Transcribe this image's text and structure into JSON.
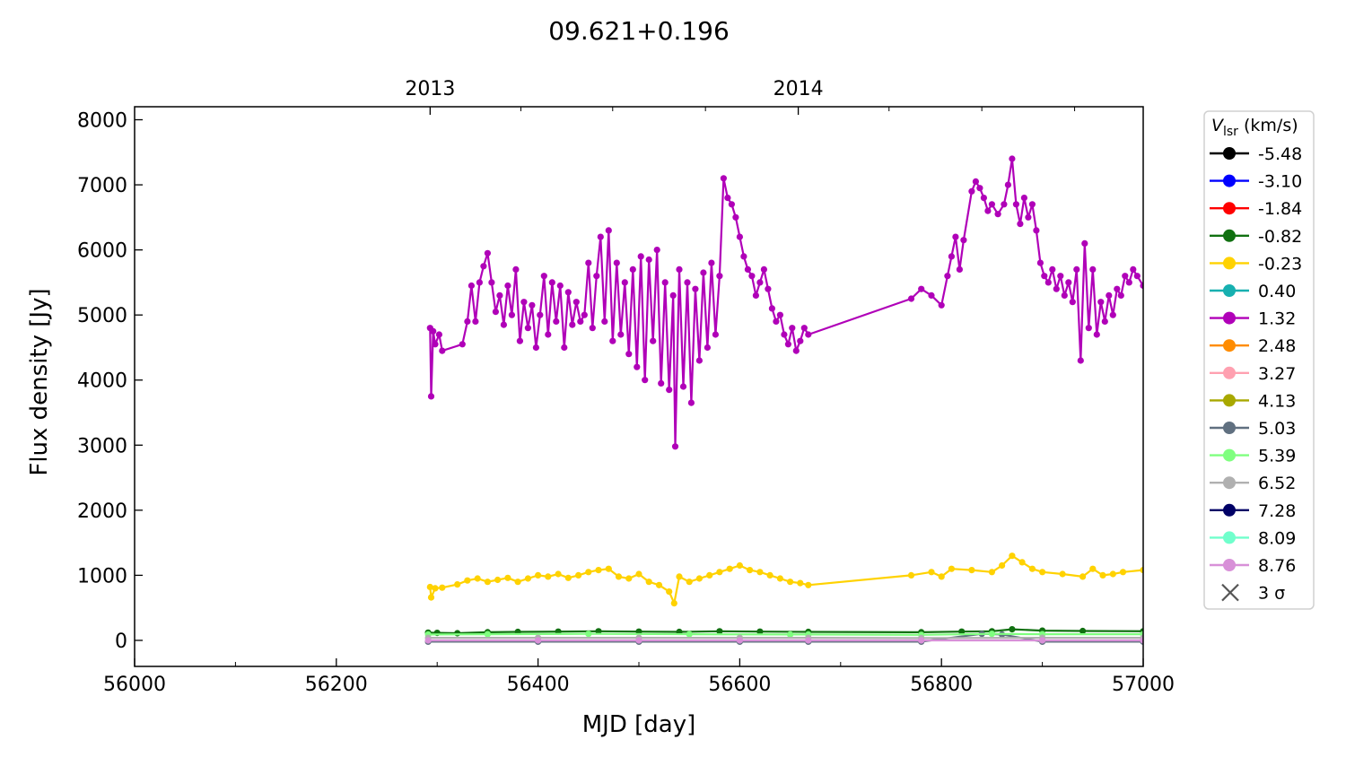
{
  "chart_data": {
    "type": "line",
    "title": "09.621+0.196",
    "xlabel": "MJD [day]",
    "ylabel": "Flux density [Jy]",
    "xlim": [
      56000,
      57000
    ],
    "ylim": [
      -400,
      8200
    ],
    "x_ticks": [
      56000,
      56200,
      56400,
      56600,
      56800,
      57000
    ],
    "y_ticks": [
      0,
      1000,
      2000,
      3000,
      4000,
      5000,
      6000,
      7000,
      8000
    ],
    "top_axis": {
      "labels": [
        {
          "text": "2013",
          "mjd": 56293
        },
        {
          "text": "2014",
          "mjd": 56658
        }
      ],
      "minor_mjd": [
        56383,
        56474,
        56566,
        56748,
        56840,
        56932
      ]
    },
    "legend": {
      "title_symbol": "V",
      "title_subscript": "lsr",
      "title_unit": " (km/s)",
      "position": "right, outside plot",
      "sigma_label": "3 σ"
    },
    "series": [
      {
        "name": "-5.48",
        "color": "#000000",
        "values": []
      },
      {
        "name": "-3.10",
        "color": "#0000ff",
        "values": []
      },
      {
        "name": "-1.84",
        "color": "#ff0000",
        "values": []
      },
      {
        "name": "-0.82",
        "color": "#107010",
        "values": [
          [
            56291,
            120
          ],
          [
            56300,
            115
          ],
          [
            56320,
            110
          ],
          [
            56350,
            125
          ],
          [
            56380,
            130
          ],
          [
            56420,
            135
          ],
          [
            56460,
            140
          ],
          [
            56500,
            135
          ],
          [
            56540,
            130
          ],
          [
            56580,
            140
          ],
          [
            56620,
            135
          ],
          [
            56668,
            130
          ],
          [
            56780,
            125
          ],
          [
            56820,
            135
          ],
          [
            56850,
            140
          ],
          [
            56870,
            170
          ],
          [
            56900,
            150
          ],
          [
            56940,
            145
          ],
          [
            57000,
            140
          ]
        ]
      },
      {
        "name": "-0.23",
        "color": "#ffd200",
        "values": [
          [
            56293,
            820
          ],
          [
            56294,
            660
          ],
          [
            56298,
            800
          ],
          [
            56305,
            810
          ],
          [
            56320,
            860
          ],
          [
            56330,
            920
          ],
          [
            56340,
            950
          ],
          [
            56350,
            900
          ],
          [
            56360,
            930
          ],
          [
            56370,
            960
          ],
          [
            56380,
            900
          ],
          [
            56390,
            950
          ],
          [
            56400,
            1000
          ],
          [
            56410,
            980
          ],
          [
            56420,
            1020
          ],
          [
            56430,
            960
          ],
          [
            56440,
            1000
          ],
          [
            56450,
            1050
          ],
          [
            56460,
            1080
          ],
          [
            56470,
            1100
          ],
          [
            56480,
            980
          ],
          [
            56490,
            950
          ],
          [
            56500,
            1020
          ],
          [
            56510,
            900
          ],
          [
            56520,
            850
          ],
          [
            56530,
            750
          ],
          [
            56535,
            570
          ],
          [
            56540,
            980
          ],
          [
            56550,
            900
          ],
          [
            56560,
            950
          ],
          [
            56570,
            1000
          ],
          [
            56580,
            1050
          ],
          [
            56590,
            1100
          ],
          [
            56600,
            1150
          ],
          [
            56610,
            1080
          ],
          [
            56620,
            1050
          ],
          [
            56630,
            1000
          ],
          [
            56640,
            950
          ],
          [
            56650,
            900
          ],
          [
            56660,
            880
          ],
          [
            56668,
            850
          ],
          [
            56770,
            1000
          ],
          [
            56790,
            1050
          ],
          [
            56800,
            980
          ],
          [
            56810,
            1100
          ],
          [
            56830,
            1080
          ],
          [
            56850,
            1050
          ],
          [
            56860,
            1150
          ],
          [
            56870,
            1300
          ],
          [
            56880,
            1200
          ],
          [
            56890,
            1100
          ],
          [
            56900,
            1050
          ],
          [
            56920,
            1020
          ],
          [
            56940,
            980
          ],
          [
            56950,
            1100
          ],
          [
            56960,
            1000
          ],
          [
            56970,
            1020
          ],
          [
            56980,
            1050
          ],
          [
            57000,
            1080
          ]
        ]
      },
      {
        "name": "0.40",
        "color": "#17b0b0",
        "values": []
      },
      {
        "name": "1.32",
        "color": "#b000b8",
        "values": [
          [
            56293,
            4800
          ],
          [
            56294,
            3750
          ],
          [
            56296,
            4750
          ],
          [
            56298,
            4550
          ],
          [
            56302,
            4700
          ],
          [
            56305,
            4450
          ],
          [
            56325,
            4550
          ],
          [
            56330,
            4900
          ],
          [
            56334,
            5450
          ],
          [
            56338,
            4900
          ],
          [
            56342,
            5500
          ],
          [
            56346,
            5750
          ],
          [
            56350,
            5950
          ],
          [
            56354,
            5500
          ],
          [
            56358,
            5050
          ],
          [
            56362,
            5300
          ],
          [
            56366,
            4850
          ],
          [
            56370,
            5450
          ],
          [
            56374,
            5000
          ],
          [
            56378,
            5700
          ],
          [
            56382,
            4600
          ],
          [
            56386,
            5200
          ],
          [
            56390,
            4800
          ],
          [
            56394,
            5150
          ],
          [
            56398,
            4500
          ],
          [
            56402,
            5000
          ],
          [
            56406,
            5600
          ],
          [
            56410,
            4700
          ],
          [
            56414,
            5500
          ],
          [
            56418,
            4900
          ],
          [
            56422,
            5450
          ],
          [
            56426,
            4500
          ],
          [
            56430,
            5350
          ],
          [
            56434,
            4850
          ],
          [
            56438,
            5200
          ],
          [
            56442,
            4900
          ],
          [
            56446,
            5000
          ],
          [
            56450,
            5800
          ],
          [
            56454,
            4800
          ],
          [
            56458,
            5600
          ],
          [
            56462,
            6200
          ],
          [
            56466,
            4900
          ],
          [
            56470,
            6300
          ],
          [
            56474,
            4600
          ],
          [
            56478,
            5800
          ],
          [
            56482,
            4700
          ],
          [
            56486,
            5500
          ],
          [
            56490,
            4400
          ],
          [
            56494,
            5700
          ],
          [
            56498,
            4200
          ],
          [
            56502,
            5900
          ],
          [
            56506,
            4000
          ],
          [
            56510,
            5850
          ],
          [
            56514,
            4600
          ],
          [
            56518,
            6000
          ],
          [
            56522,
            3950
          ],
          [
            56526,
            5500
          ],
          [
            56530,
            3850
          ],
          [
            56534,
            5300
          ],
          [
            56536,
            2980
          ],
          [
            56540,
            5700
          ],
          [
            56544,
            3900
          ],
          [
            56548,
            5500
          ],
          [
            56552,
            3650
          ],
          [
            56556,
            5400
          ],
          [
            56560,
            4300
          ],
          [
            56564,
            5650
          ],
          [
            56568,
            4500
          ],
          [
            56572,
            5800
          ],
          [
            56576,
            4700
          ],
          [
            56580,
            5600
          ],
          [
            56584,
            7100
          ],
          [
            56588,
            6800
          ],
          [
            56592,
            6700
          ],
          [
            56596,
            6500
          ],
          [
            56600,
            6200
          ],
          [
            56604,
            5900
          ],
          [
            56608,
            5700
          ],
          [
            56612,
            5600
          ],
          [
            56616,
            5300
          ],
          [
            56620,
            5500
          ],
          [
            56624,
            5700
          ],
          [
            56628,
            5400
          ],
          [
            56632,
            5100
          ],
          [
            56636,
            4900
          ],
          [
            56640,
            5000
          ],
          [
            56644,
            4700
          ],
          [
            56648,
            4550
          ],
          [
            56652,
            4800
          ],
          [
            56656,
            4450
          ],
          [
            56660,
            4600
          ],
          [
            56664,
            4800
          ],
          [
            56668,
            4700
          ],
          [
            56770,
            5250
          ],
          [
            56780,
            5400
          ],
          [
            56790,
            5300
          ],
          [
            56800,
            5150
          ],
          [
            56806,
            5600
          ],
          [
            56810,
            5900
          ],
          [
            56814,
            6200
          ],
          [
            56818,
            5700
          ],
          [
            56822,
            6150
          ],
          [
            56830,
            6900
          ],
          [
            56834,
            7050
          ],
          [
            56838,
            6950
          ],
          [
            56842,
            6800
          ],
          [
            56846,
            6600
          ],
          [
            56850,
            6700
          ],
          [
            56856,
            6550
          ],
          [
            56862,
            6700
          ],
          [
            56866,
            7000
          ],
          [
            56870,
            7400
          ],
          [
            56874,
            6700
          ],
          [
            56878,
            6400
          ],
          [
            56882,
            6800
          ],
          [
            56886,
            6500
          ],
          [
            56890,
            6700
          ],
          [
            56894,
            6300
          ],
          [
            56898,
            5800
          ],
          [
            56902,
            5600
          ],
          [
            56906,
            5500
          ],
          [
            56910,
            5700
          ],
          [
            56914,
            5400
          ],
          [
            56918,
            5600
          ],
          [
            56922,
            5300
          ],
          [
            56926,
            5500
          ],
          [
            56930,
            5200
          ],
          [
            56934,
            5700
          ],
          [
            56938,
            4300
          ],
          [
            56942,
            6100
          ],
          [
            56946,
            4800
          ],
          [
            56950,
            5700
          ],
          [
            56954,
            4700
          ],
          [
            56958,
            5200
          ],
          [
            56962,
            4900
          ],
          [
            56966,
            5300
          ],
          [
            56970,
            5000
          ],
          [
            56974,
            5400
          ],
          [
            56978,
            5300
          ],
          [
            56982,
            5600
          ],
          [
            56986,
            5500
          ],
          [
            56990,
            5700
          ],
          [
            56994,
            5600
          ],
          [
            57000,
            5450
          ]
        ]
      },
      {
        "name": "2.48",
        "color": "#ff8c00",
        "values": []
      },
      {
        "name": "3.27",
        "color": "#ffa0b0",
        "values": []
      },
      {
        "name": "4.13",
        "color": "#a8a800",
        "values": []
      },
      {
        "name": "5.03",
        "color": "#607080",
        "values": [
          [
            56291,
            -20
          ],
          [
            56400,
            -20
          ],
          [
            56500,
            -20
          ],
          [
            56600,
            -20
          ],
          [
            56668,
            -20
          ],
          [
            56780,
            -20
          ],
          [
            56840,
            100
          ],
          [
            56860,
            90
          ],
          [
            56900,
            -20
          ],
          [
            57000,
            -20
          ]
        ]
      },
      {
        "name": "5.39",
        "color": "#7fff7f",
        "values": [
          [
            56291,
            90
          ],
          [
            56350,
            95
          ],
          [
            56450,
            100
          ],
          [
            56550,
            95
          ],
          [
            56650,
            90
          ],
          [
            56668,
            90
          ],
          [
            56780,
            85
          ],
          [
            56850,
            100
          ],
          [
            56900,
            95
          ],
          [
            57000,
            95
          ]
        ]
      },
      {
        "name": "6.52",
        "color": "#b0b0b0",
        "values": [
          [
            56291,
            40
          ],
          [
            56400,
            40
          ],
          [
            56500,
            40
          ],
          [
            56600,
            40
          ],
          [
            56668,
            40
          ],
          [
            56780,
            35
          ],
          [
            56900,
            40
          ],
          [
            57000,
            40
          ]
        ]
      },
      {
        "name": "7.28",
        "color": "#000066",
        "values": []
      },
      {
        "name": "8.09",
        "color": "#70ffcc",
        "values": []
      },
      {
        "name": "8.76",
        "color": "#d890d8",
        "values": [
          [
            56291,
            0
          ],
          [
            56400,
            0
          ],
          [
            56500,
            0
          ],
          [
            56600,
            0
          ],
          [
            56668,
            0
          ],
          [
            56780,
            0
          ],
          [
            56900,
            0
          ],
          [
            57000,
            0
          ]
        ]
      }
    ]
  }
}
